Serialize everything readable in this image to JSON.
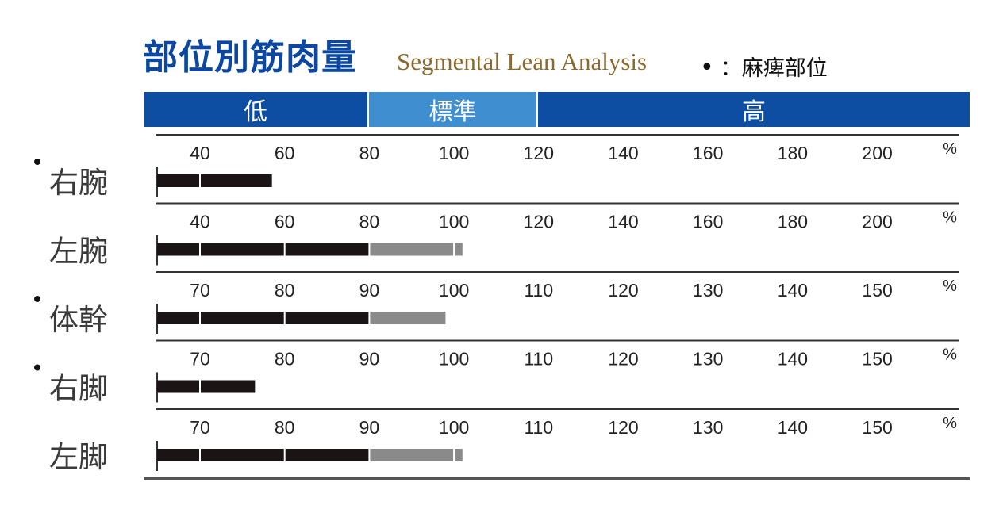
{
  "header": {
    "title_jp": "部位別筋肉量",
    "title_en": "Segmental Lean Analysis",
    "legend_dot": "•",
    "legend_text": "：麻痺部位"
  },
  "band": {
    "low": "低",
    "standard": "標準",
    "high": "高"
  },
  "colors": {
    "title": "#0c47a1",
    "subtitle": "#8b6a2e",
    "band_dark": "#0d4ea3",
    "band_light": "#3f8ecf",
    "bar_dark": "#1b1414",
    "bar_gray": "#8a8a8a"
  },
  "chart_data": {
    "type": "bar",
    "unit": "%",
    "rows": [
      {
        "label": "右腕",
        "paralysis": true,
        "ticks": [
          40,
          60,
          80,
          100,
          120,
          140,
          160,
          180,
          200
        ],
        "value": 57
      },
      {
        "label": "左腕",
        "paralysis": false,
        "ticks": [
          40,
          60,
          80,
          100,
          120,
          140,
          160,
          180,
          200
        ],
        "value": 102
      },
      {
        "label": "体幹",
        "paralysis": true,
        "ticks": [
          70,
          80,
          90,
          100,
          110,
          120,
          130,
          140,
          150
        ],
        "value": 99
      },
      {
        "label": "右脚",
        "paralysis": true,
        "ticks": [
          70,
          80,
          90,
          100,
          110,
          120,
          130,
          140,
          150
        ],
        "value": 76.5
      },
      {
        "label": "左脚",
        "paralysis": false,
        "ticks": [
          70,
          80,
          90,
          100,
          110,
          120,
          130,
          140,
          150
        ],
        "value": 101
      }
    ]
  }
}
